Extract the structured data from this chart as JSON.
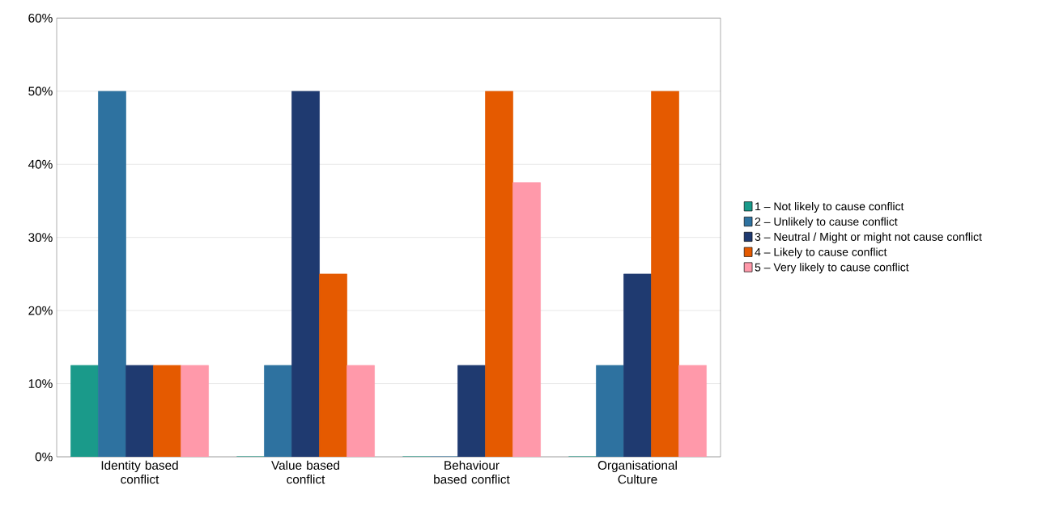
{
  "chart_data": {
    "type": "bar",
    "categories": [
      "Identity based conflict",
      "Value based conflict",
      "Behaviour based conflict",
      "Organisational Culture"
    ],
    "series": [
      {
        "name": "1 – Not likely to cause conflict",
        "color": "#1a9a8a",
        "values": [
          12.5,
          0,
          0,
          0
        ]
      },
      {
        "name": "2 – Unlikely to cause conflict",
        "color": "#2e72a0",
        "values": [
          50,
          12.5,
          0,
          12.5
        ]
      },
      {
        "name": "3 – Neutral / Might or might not cause conflict",
        "color": "#1f3a70",
        "values": [
          12.5,
          50,
          12.5,
          25
        ]
      },
      {
        "name": "4 – Likely to cause conflict",
        "color": "#e55a00",
        "values": [
          12.5,
          25,
          50,
          50
        ]
      },
      {
        "name": "5 – Very likely to cause conflict",
        "color": "#ff99aa",
        "values": [
          12.5,
          12.5,
          37.5,
          12.5
        ]
      }
    ],
    "ylim": [
      0,
      60
    ],
    "yticks": [
      {
        "value": 0,
        "label": "0%"
      },
      {
        "value": 10,
        "label": "10%"
      },
      {
        "value": 20,
        "label": "20%"
      },
      {
        "value": 30,
        "label": "30%"
      },
      {
        "value": 40,
        "label": "40%"
      },
      {
        "value": 50,
        "label": "50%"
      },
      {
        "value": 60,
        "label": "60%"
      }
    ],
    "grid": "y",
    "legend": "right"
  }
}
